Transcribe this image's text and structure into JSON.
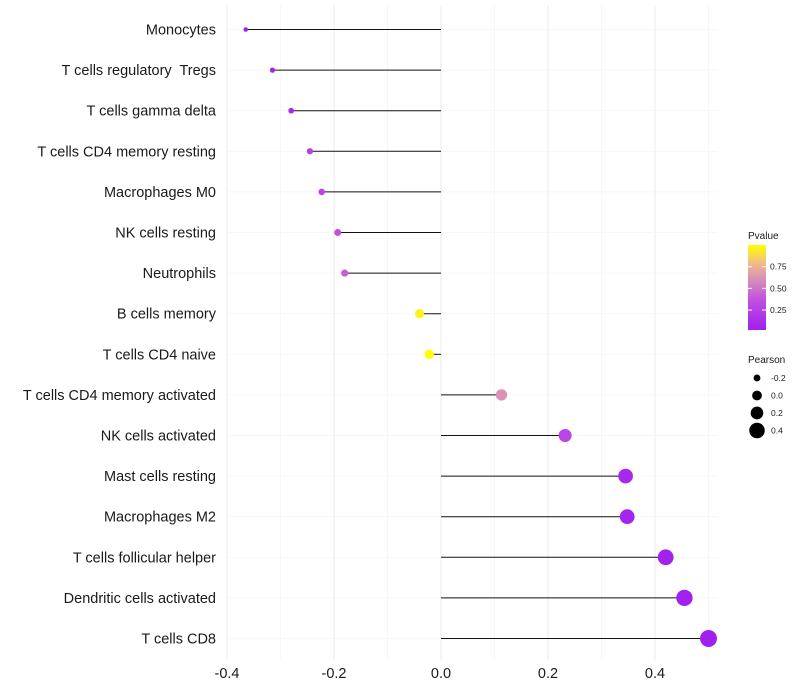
{
  "chart_data": {
    "type": "lollipop",
    "categories": [
      "Monocytes",
      "T cells regulatory  Tregs",
      "T cells gamma delta",
      "T cells CD4 memory resting",
      "Macrophages M0",
      "NK cells resting",
      "Neutrophils",
      "B cells memory",
      "T cells CD4 naive",
      "T cells CD4 memory activated",
      "NK cells activated",
      "Mast cells resting",
      "Macrophages M2",
      "T cells follicular helper",
      "Dendritic cells activated",
      "T cells CD8"
    ],
    "values": [
      -0.365,
      -0.315,
      -0.28,
      -0.245,
      -0.223,
      -0.193,
      -0.18,
      -0.04,
      -0.022,
      0.113,
      0.232,
      0.345,
      0.348,
      0.42,
      0.455,
      0.5
    ],
    "pvalues": [
      0.02,
      0.05,
      0.1,
      0.25,
      0.3,
      0.36,
      0.42,
      0.96,
      1.0,
      0.62,
      0.3,
      0.08,
      0.06,
      0.04,
      0.03,
      0.02
    ],
    "xlim": [
      -0.4,
      0.5
    ],
    "xticks": [
      -0.4,
      -0.2,
      0.0,
      0.2,
      0.4
    ],
    "xtick_labels": [
      "-0.4",
      "-0.2",
      "0.0",
      "0.2",
      "0.4"
    ],
    "grid": true,
    "legend_placement": "right",
    "color_legend": {
      "title": "Pvalue",
      "ticks": [
        0.25,
        0.5,
        0.75
      ],
      "tick_labels": [
        "0.25",
        "0.50",
        "0.75"
      ],
      "range": [
        0.02,
        1.0
      ],
      "low_color": "#a020f0",
      "mid_color": "#d07fc0",
      "high_color": "#ffff00"
    },
    "size_legend": {
      "title": "Pearson",
      "values": [
        -0.2,
        0.0,
        0.2,
        0.4
      ],
      "labels": [
        "-0.2",
        "0.0",
        "0.2",
        "0.4"
      ]
    }
  }
}
